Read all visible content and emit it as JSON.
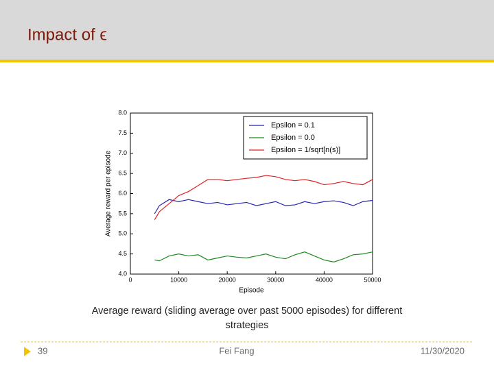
{
  "slide": {
    "title": "Impact of ϵ",
    "caption": "Average reward (sliding average over past 5000 episodes) for different strategies",
    "page_number": "39",
    "author": "Fei Fang",
    "date": "11/30/2020"
  },
  "chart_data": {
    "type": "line",
    "x_label": "Episode",
    "y_label": "Average reward per episode",
    "x": [
      5000,
      6000,
      8000,
      10000,
      12000,
      14000,
      16000,
      18000,
      20000,
      22000,
      24000,
      26000,
      28000,
      30000,
      32000,
      34000,
      36000,
      38000,
      40000,
      42000,
      44000,
      46000,
      48000,
      50000
    ],
    "series": [
      {
        "name": "Epsilon = 0.1",
        "color": "#2323b4",
        "values": [
          5.5,
          5.7,
          5.85,
          5.8,
          5.85,
          5.8,
          5.75,
          5.78,
          5.72,
          5.75,
          5.78,
          5.7,
          5.75,
          5.8,
          5.7,
          5.72,
          5.8,
          5.75,
          5.8,
          5.82,
          5.78,
          5.7,
          5.8,
          5.83
        ]
      },
      {
        "name": "Epsilon = 0.0",
        "color": "#1e8a1e",
        "values": [
          4.35,
          4.33,
          4.45,
          4.5,
          4.45,
          4.48,
          4.35,
          4.4,
          4.45,
          4.42,
          4.4,
          4.45,
          4.5,
          4.42,
          4.38,
          4.48,
          4.55,
          4.45,
          4.35,
          4.3,
          4.38,
          4.48,
          4.5,
          4.55
        ]
      },
      {
        "name": "Epsilon = 1/sqrt[n(s)]",
        "color": "#e02222",
        "values": [
          5.35,
          5.55,
          5.75,
          5.95,
          6.05,
          6.2,
          6.35,
          6.35,
          6.32,
          6.35,
          6.38,
          6.4,
          6.45,
          6.42,
          6.35,
          6.32,
          6.35,
          6.3,
          6.22,
          6.25,
          6.3,
          6.25,
          6.22,
          6.35
        ]
      }
    ],
    "xlim": [
      0,
      50000
    ],
    "xticks": [
      0,
      10000,
      20000,
      30000,
      40000,
      50000
    ],
    "ylim": [
      4,
      8
    ],
    "yticks": [
      {
        "value": 4,
        "label": "4.0"
      },
      4.5,
      {
        "value": 5,
        "label": "5.0"
      },
      5.5,
      {
        "value": 6,
        "label": "6.0"
      },
      6.5,
      {
        "value": 7,
        "label": "7.0"
      },
      7.5,
      {
        "value": 8,
        "label": "8.0"
      }
    ],
    "grid": false,
    "legend": "upper right"
  }
}
